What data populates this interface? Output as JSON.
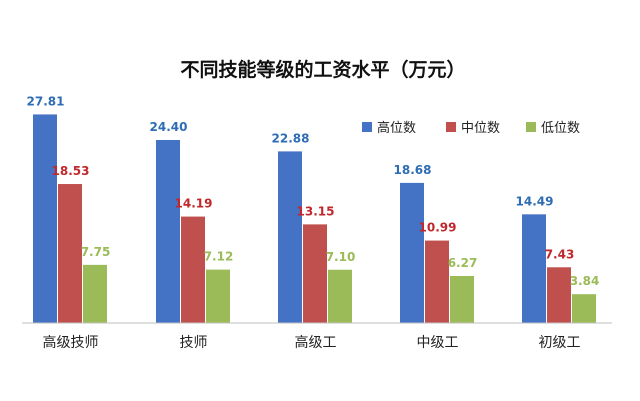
{
  "chart_data": {
    "type": "bar",
    "title": "不同技能等级的工资水平（万元）",
    "xlabel": "",
    "ylabel": "",
    "categories": [
      "高级技师",
      "技师",
      "高级工",
      "中级工",
      "初级工"
    ],
    "series": [
      {
        "name": "高位数",
        "values": [
          27.81,
          24.4,
          22.88,
          18.68,
          14.49
        ],
        "labels": [
          "27.81",
          "24.40",
          "22.88",
          "18.68",
          "14.49"
        ],
        "color": "#4472C4"
      },
      {
        "name": "中位数",
        "values": [
          18.53,
          14.19,
          13.15,
          10.99,
          7.43
        ],
        "labels": [
          "18.53",
          "14.19",
          "13.15",
          "10.99",
          "7.43"
        ],
        "color": "#C0504D"
      },
      {
        "name": "低位数",
        "values": [
          7.75,
          7.12,
          7.1,
          6.27,
          3.84
        ],
        "labels": [
          "7.75",
          "7.12",
          "7.10",
          "6.27",
          "3.84"
        ],
        "color": "#9BBB59"
      }
    ],
    "ylim": [
      0,
      30
    ],
    "grid": false,
    "legend_position": "top-right"
  }
}
